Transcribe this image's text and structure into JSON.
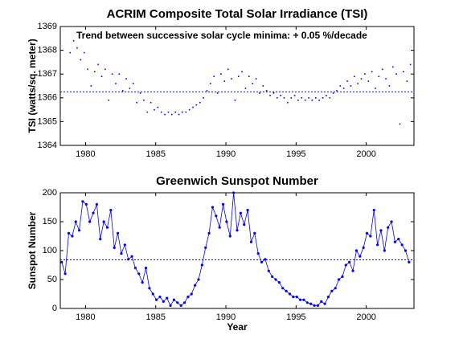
{
  "chart_data": [
    {
      "type": "scatter",
      "title": "ACRIM Composite Total Solar Irradiance (TSI)",
      "annotation": "Trend between successive solar cycle minima:  + 0.05  %/decade",
      "y_label": "TSI (watts/sq. meter)",
      "color": "#0000ff",
      "xlim": [
        1978.2,
        2003.4
      ],
      "xticks": [
        1980,
        1985,
        1990,
        1995,
        2000
      ],
      "ylim": [
        1364,
        1369
      ],
      "yticks": [
        1364,
        1365,
        1366,
        1367,
        1368,
        1369
      ],
      "reference_line": 1366.25,
      "x": [
        1978.9,
        1979.15,
        1979.4,
        1979.65,
        1979.9,
        1980.15,
        1980.4,
        1980.65,
        1980.9,
        1981.15,
        1981.4,
        1981.65,
        1981.9,
        1982.15,
        1982.4,
        1982.65,
        1982.9,
        1983.15,
        1983.4,
        1983.65,
        1983.9,
        1984.15,
        1984.4,
        1984.65,
        1984.9,
        1985.15,
        1985.4,
        1985.65,
        1985.9,
        1986.15,
        1986.4,
        1986.65,
        1986.9,
        1987.15,
        1987.4,
        1987.65,
        1987.9,
        1988.15,
        1988.4,
        1988.65,
        1988.9,
        1989.15,
        1989.4,
        1989.65,
        1989.9,
        1990.15,
        1990.4,
        1990.65,
        1990.9,
        1991.15,
        1991.4,
        1991.65,
        1991.9,
        1992.15,
        1992.4,
        1992.65,
        1992.9,
        1993.15,
        1993.4,
        1993.65,
        1993.9,
        1994.15,
        1994.4,
        1994.65,
        1994.9,
        1995.15,
        1995.4,
        1995.65,
        1995.9,
        1996.15,
        1996.4,
        1996.65,
        1996.9,
        1997.15,
        1997.4,
        1997.65,
        1997.9,
        1998.15,
        1998.4,
        1998.65,
        1998.9,
        1999.15,
        1999.4,
        1999.65,
        1999.9,
        2000.15,
        2000.4,
        2000.65,
        2000.9,
        2001.15,
        2001.4,
        2001.65,
        2001.9,
        2002.15,
        2002.4,
        2002.65,
        2002.9,
        2003.15
      ],
      "values": [
        1367.9,
        1368.4,
        1368.1,
        1367.6,
        1367.9,
        1367.2,
        1366.5,
        1367.1,
        1367.4,
        1366.9,
        1367.2,
        1365.9,
        1367.0,
        1366.6,
        1367.0,
        1366.3,
        1366.8,
        1366.4,
        1366.6,
        1365.8,
        1366.2,
        1365.9,
        1365.4,
        1365.8,
        1365.5,
        1365.6,
        1365.4,
        1365.3,
        1365.4,
        1365.3,
        1365.4,
        1365.3,
        1365.4,
        1365.4,
        1365.5,
        1365.6,
        1365.7,
        1365.8,
        1366.0,
        1366.3,
        1366.6,
        1366.9,
        1366.2,
        1367.0,
        1366.7,
        1367.2,
        1366.8,
        1365.9,
        1366.9,
        1367.1,
        1366.4,
        1366.9,
        1366.6,
        1366.8,
        1366.2,
        1366.5,
        1366.3,
        1366.1,
        1366.2,
        1366.0,
        1366.1,
        1366.0,
        1365.8,
        1366.0,
        1366.1,
        1365.9,
        1366.0,
        1365.9,
        1366.0,
        1365.9,
        1366.0,
        1365.9,
        1366.0,
        1366.1,
        1366.0,
        1366.2,
        1366.3,
        1366.5,
        1366.4,
        1366.7,
        1366.5,
        1366.9,
        1366.6,
        1366.8,
        1367.0,
        1366.7,
        1367.1,
        1366.4,
        1366.9,
        1367.2,
        1366.8,
        1366.5,
        1367.3,
        1367.0,
        1364.9,
        1367.1,
        1366.7,
        1367.4
      ]
    },
    {
      "type": "line",
      "title": "Greenwich Sunspot Number",
      "y_label": "Sunspot Number",
      "x_label": "Year",
      "color": "#0000ff",
      "xlim": [
        1978.2,
        2003.4
      ],
      "xticks": [
        1980,
        1985,
        1990,
        1995,
        2000
      ],
      "ylim": [
        0,
        200
      ],
      "yticks": [
        0,
        50,
        100,
        150,
        200
      ],
      "reference_line": 84,
      "x": [
        1978.3,
        1978.55,
        1978.8,
        1979.05,
        1979.3,
        1979.55,
        1979.8,
        1980.05,
        1980.3,
        1980.55,
        1980.8,
        1981.05,
        1981.3,
        1981.55,
        1981.8,
        1982.05,
        1982.3,
        1982.55,
        1982.8,
        1983.05,
        1983.3,
        1983.55,
        1983.8,
        1984.05,
        1984.3,
        1984.55,
        1984.8,
        1985.05,
        1985.3,
        1985.55,
        1985.8,
        1986.05,
        1986.3,
        1986.55,
        1986.8,
        1987.05,
        1987.3,
        1987.55,
        1987.8,
        1988.05,
        1988.3,
        1988.55,
        1988.8,
        1989.05,
        1989.3,
        1989.55,
        1989.8,
        1990.05,
        1990.3,
        1990.55,
        1990.8,
        1991.05,
        1991.3,
        1991.55,
        1991.8,
        1992.05,
        1992.3,
        1992.55,
        1992.8,
        1993.05,
        1993.3,
        1993.55,
        1993.8,
        1994.05,
        1994.3,
        1994.55,
        1994.8,
        1995.05,
        1995.3,
        1995.55,
        1995.8,
        1996.05,
        1996.3,
        1996.55,
        1996.8,
        1997.05,
        1997.3,
        1997.55,
        1997.8,
        1998.05,
        1998.3,
        1998.55,
        1998.8,
        1999.05,
        1999.3,
        1999.55,
        1999.8,
        2000.05,
        2000.3,
        2000.55,
        2000.8,
        2001.05,
        2001.3,
        2001.55,
        2001.8,
        2002.05,
        2002.3,
        2002.55,
        2002.8,
        2003.05
      ],
      "values": [
        80,
        60,
        130,
        125,
        150,
        135,
        185,
        180,
        150,
        165,
        180,
        120,
        150,
        140,
        170,
        105,
        130,
        95,
        110,
        85,
        90,
        70,
        60,
        45,
        70,
        35,
        25,
        15,
        20,
        12,
        18,
        5,
        15,
        10,
        5,
        10,
        20,
        25,
        40,
        50,
        75,
        105,
        130,
        175,
        160,
        140,
        180,
        150,
        125,
        200,
        135,
        165,
        145,
        170,
        115,
        130,
        95,
        80,
        85,
        65,
        55,
        50,
        45,
        35,
        30,
        25,
        20,
        20,
        15,
        15,
        10,
        8,
        5,
        5,
        12,
        8,
        20,
        30,
        35,
        50,
        55,
        75,
        80,
        65,
        100,
        90,
        105,
        130,
        125,
        170,
        110,
        135,
        100,
        140,
        150,
        115,
        120,
        110,
        100,
        80
      ]
    }
  ]
}
